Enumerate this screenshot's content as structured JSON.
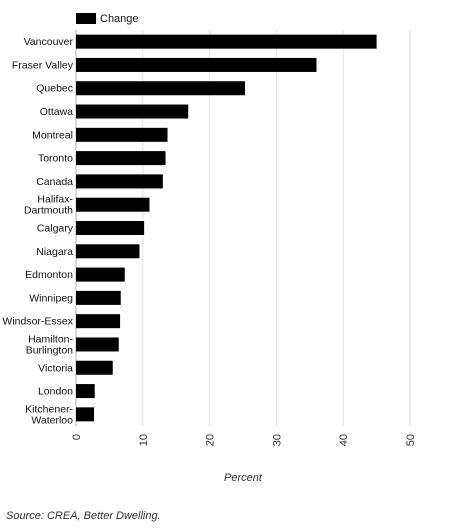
{
  "chart_data": {
    "type": "bar",
    "orientation": "horizontal",
    "categories": [
      [
        "Vancouver"
      ],
      [
        "Fraser Valley"
      ],
      [
        "Quebec"
      ],
      [
        "Ottawa"
      ],
      [
        "Montreal"
      ],
      [
        "Toronto"
      ],
      [
        "Canada"
      ],
      [
        "Halifax-",
        "Dartmouth"
      ],
      [
        "Calgary"
      ],
      [
        "Niagara"
      ],
      [
        "Edmonton"
      ],
      [
        "Winnipeg"
      ],
      [
        "Windsor-Essex"
      ],
      [
        "Hamilton-",
        "Burlington"
      ],
      [
        "Victoria"
      ],
      [
        "London"
      ],
      [
        "Kitchener-",
        "Waterloo"
      ]
    ],
    "series": [
      {
        "name": "Change",
        "color": "#000000",
        "values": [
          45,
          36,
          25.3,
          16.8,
          13.7,
          13.4,
          13.0,
          11.0,
          10.2,
          9.5,
          7.3,
          6.7,
          6.6,
          6.4,
          5.5,
          2.8,
          2.7
        ]
      }
    ],
    "xlabel": "Percent",
    "xlim": [
      0,
      50
    ],
    "xticks": [
      "0",
      "10",
      "20",
      "30",
      "40",
      "50"
    ],
    "grid": "vertical",
    "legend": "top-left"
  },
  "source": "Source: CREA, Better Dwelling."
}
